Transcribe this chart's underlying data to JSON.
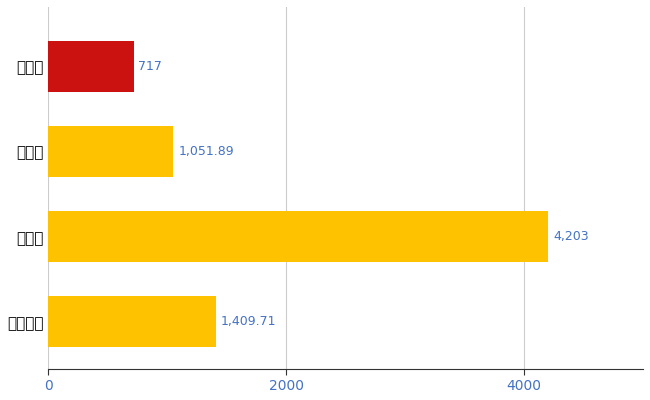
{
  "categories": [
    "下妻市",
    "県平均",
    "県最大",
    "全国平均"
  ],
  "values": [
    717,
    1051.89,
    4203,
    1409.71
  ],
  "bar_colors": [
    "#CC1111",
    "#FFC200",
    "#FFC200",
    "#FFC200"
  ],
  "labels": [
    "717",
    "1,051.89",
    "4,203",
    "1,409.71"
  ],
  "label_color": "#4472C4",
  "xlim": [
    0,
    5000
  ],
  "xticks": [
    0,
    2000,
    4000
  ],
  "xtick_color": "#4472C4",
  "background_color": "#FFFFFF",
  "grid_color": "#CCCCCC",
  "bar_height": 0.6,
  "figsize": [
    6.5,
    4.0
  ],
  "dpi": 100,
  "label_fontsize": 9,
  "ytick_fontsize": 11,
  "xtick_fontsize": 10
}
